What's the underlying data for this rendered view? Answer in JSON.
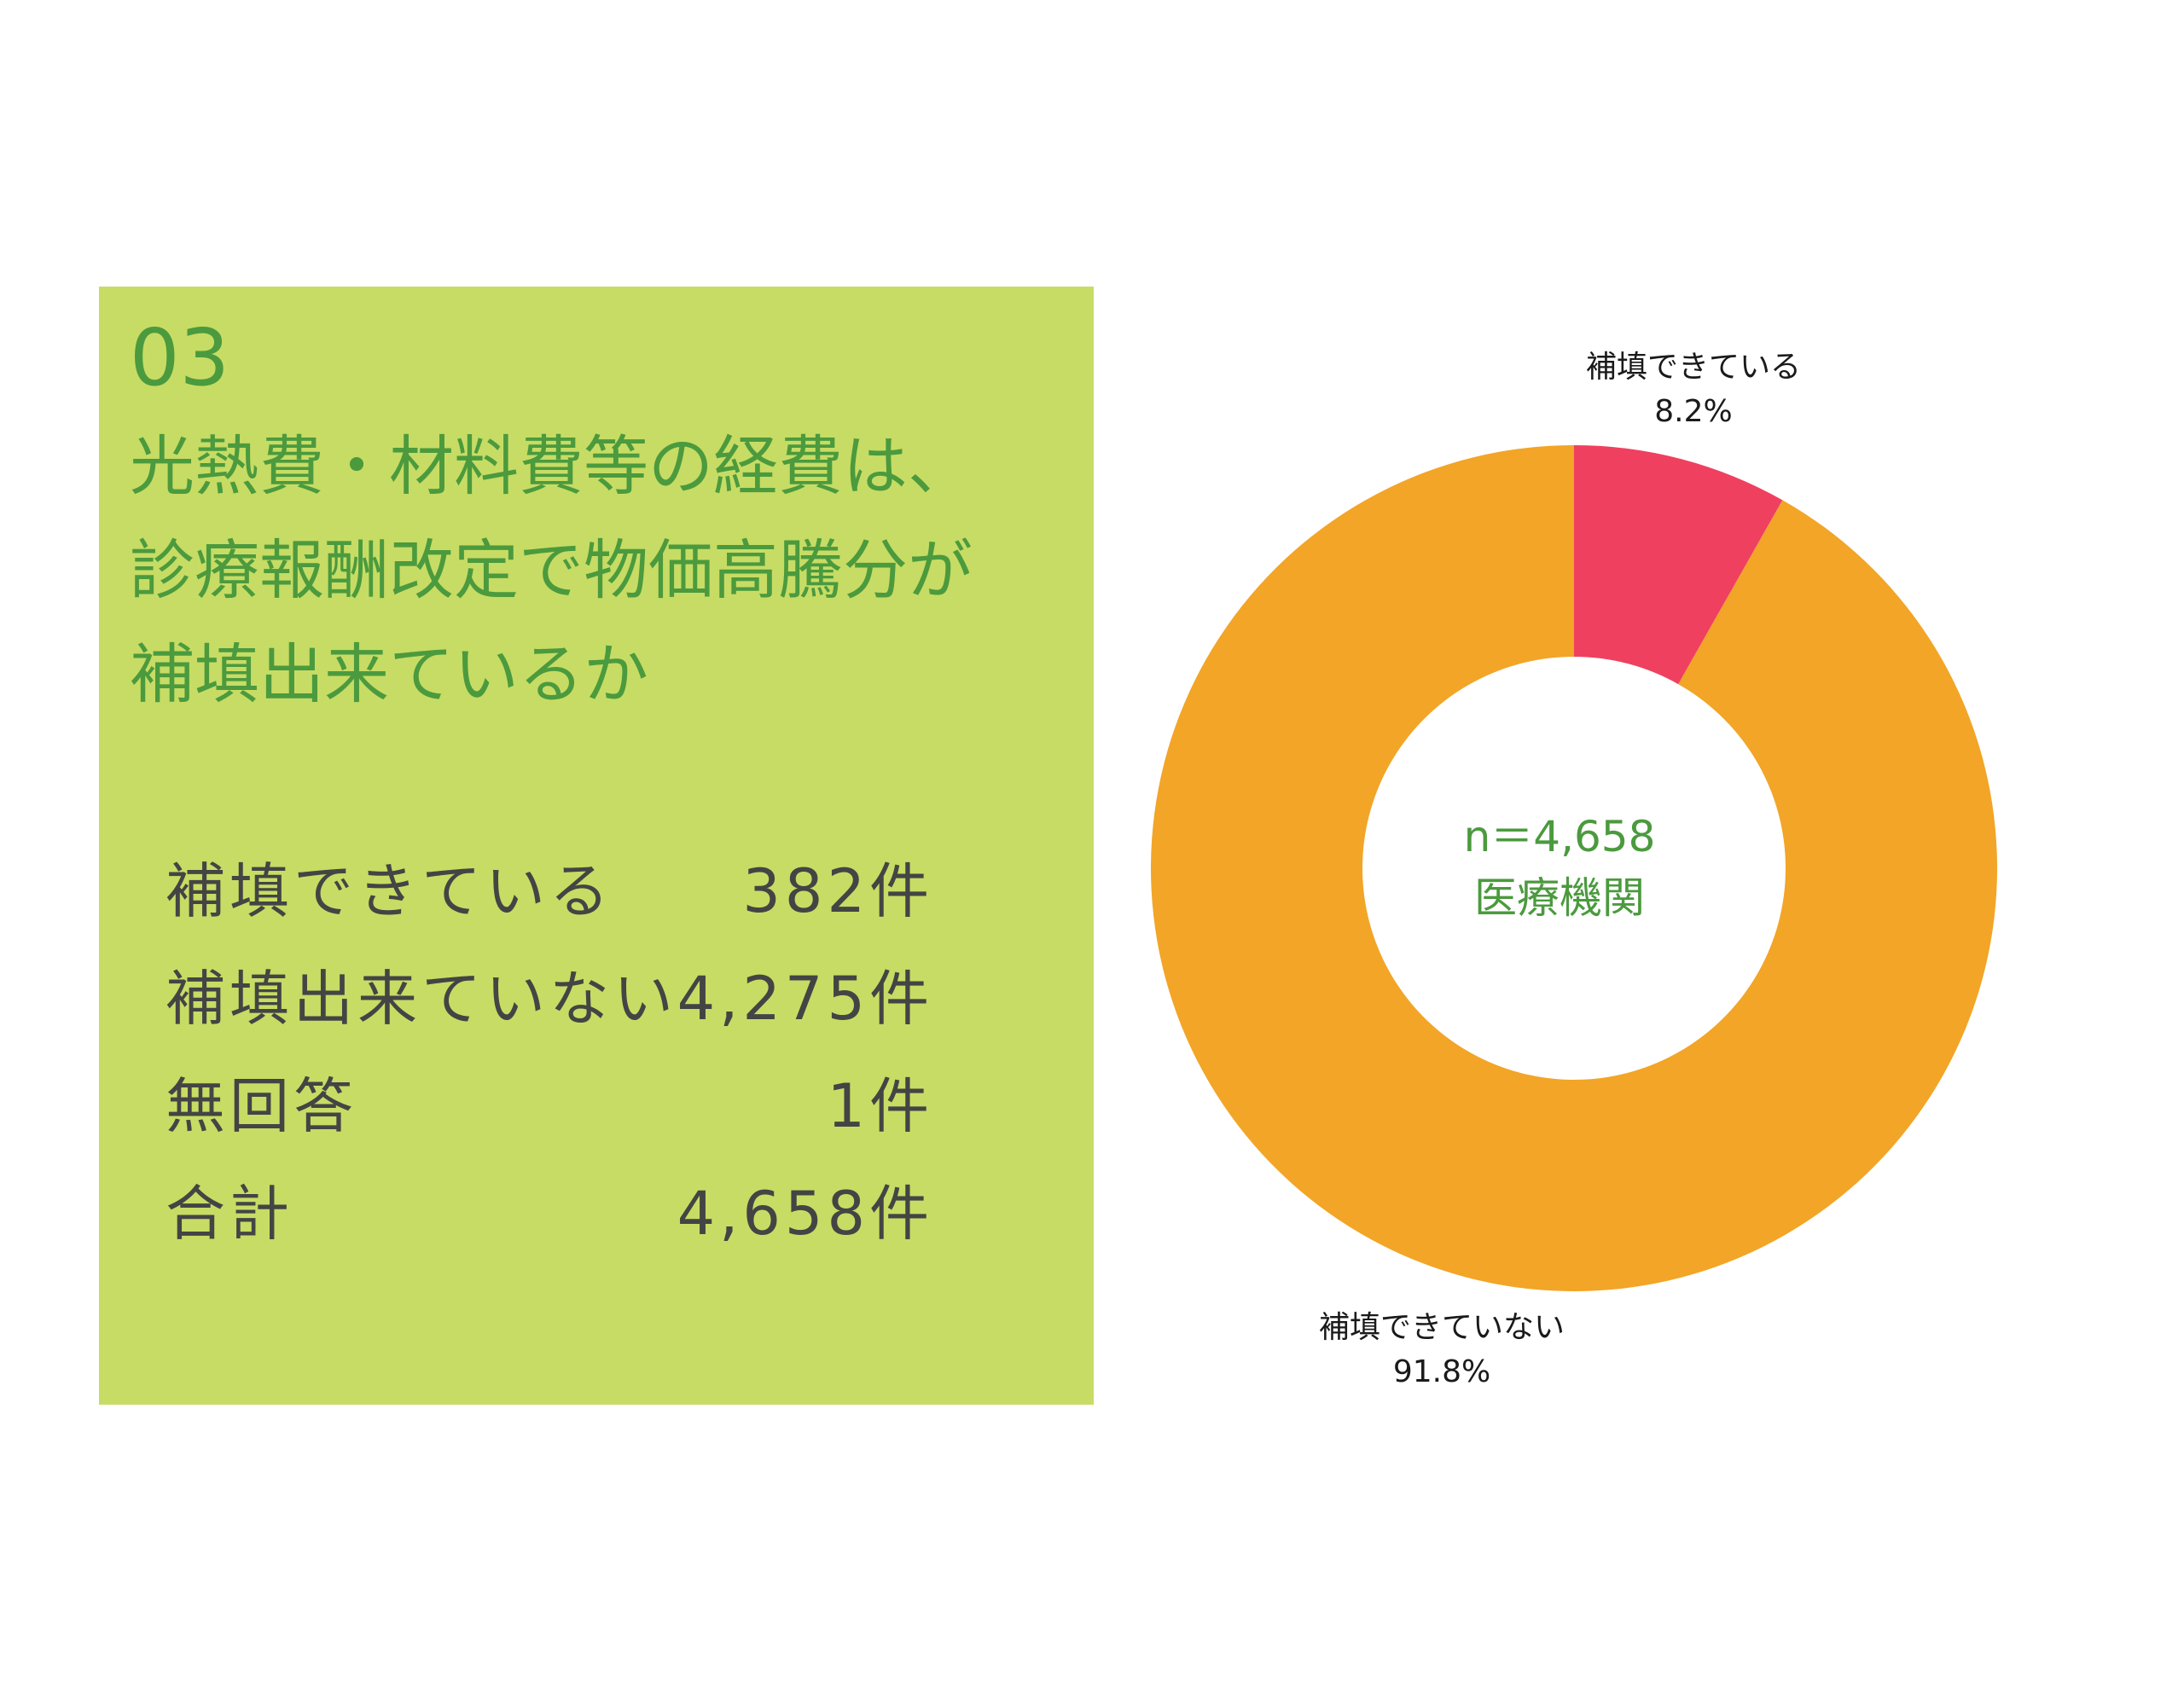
{
  "panel": {
    "number": "03",
    "title_lines": [
      "光熱費・材料費等の経費は、",
      "診療報酬改定で物価高騰分が",
      "補填出来ているか"
    ],
    "table": [
      {
        "label": "補填できている",
        "count": "382件"
      },
      {
        "label": "補填出来ていない",
        "count": "4,275件"
      },
      {
        "label": "無回答",
        "count": "1件"
      },
      {
        "label": "合計",
        "count": "4,658件"
      }
    ]
  },
  "colors": {
    "panel_bg": "#c7dc64",
    "accent_text": "#4b9a3e",
    "slice_filled": "#ef4060",
    "slice_not_filled": "#f2a526"
  },
  "chart_data": {
    "type": "pie",
    "style": "donut",
    "center_text": [
      "n＝4,658",
      "医療機関"
    ],
    "slices": [
      {
        "label": "補填できている",
        "value": 8.2,
        "value_label": "8.2%",
        "color": "#ef4060"
      },
      {
        "label": "補填できていない",
        "value": 91.8,
        "value_label": "91.8%",
        "color": "#f2a526"
      }
    ],
    "start_angle": "12 o'clock",
    "direction": "clockwise",
    "legend": "none"
  }
}
